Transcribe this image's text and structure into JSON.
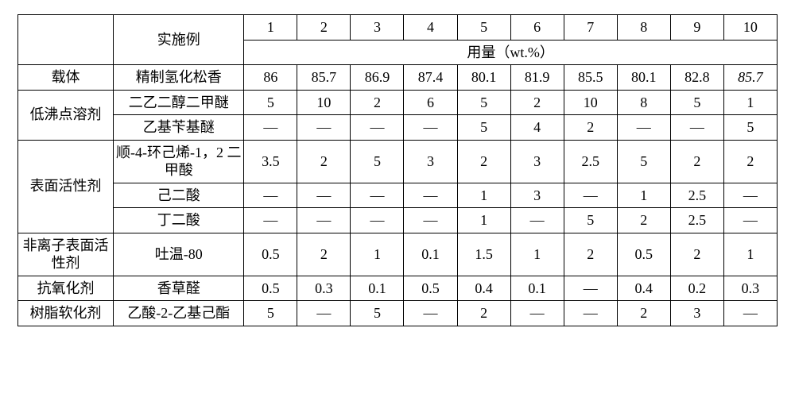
{
  "header": {
    "example_label": "实施例",
    "col_numbers": [
      "1",
      "2",
      "3",
      "4",
      "5",
      "6",
      "7",
      "8",
      "9",
      "10"
    ],
    "usage_label": "用量（wt.%）"
  },
  "dash": "—",
  "groups": [
    {
      "category": "载体",
      "rows": [
        {
          "item": "精制氢化松香",
          "values": [
            "86",
            "85.7",
            "86.9",
            "87.4",
            "80.1",
            "81.9",
            "85.5",
            "80.1",
            "82.8",
            "85.7"
          ],
          "italic_last": true
        }
      ]
    },
    {
      "category": "低沸点溶剂",
      "rows": [
        {
          "item": "二乙二醇二甲醚",
          "values": [
            "5",
            "10",
            "2",
            "6",
            "5",
            "2",
            "10",
            "8",
            "5",
            "1"
          ]
        },
        {
          "item": "乙基苄基醚",
          "values": [
            "—",
            "—",
            "—",
            "—",
            "5",
            "4",
            "2",
            "—",
            "—",
            "5"
          ]
        }
      ]
    },
    {
      "category": "表面活性剂",
      "rows": [
        {
          "item": "顺-4-环己烯-1，2 二甲酸",
          "values": [
            "3.5",
            "2",
            "5",
            "3",
            "2",
            "3",
            "2.5",
            "5",
            "2",
            "2"
          ]
        },
        {
          "item": "己二酸",
          "values": [
            "—",
            "—",
            "—",
            "—",
            "1",
            "3",
            "—",
            "1",
            "2.5",
            "—"
          ]
        },
        {
          "item": "丁二酸",
          "values": [
            "—",
            "—",
            "—",
            "—",
            "1",
            "—",
            "5",
            "2",
            "2.5",
            "—"
          ]
        }
      ]
    },
    {
      "category": "非离子表面活性剂",
      "rows": [
        {
          "item": "吐温-80",
          "values": [
            "0.5",
            "2",
            "1",
            "0.1",
            "1.5",
            "1",
            "2",
            "0.5",
            "2",
            "1"
          ]
        }
      ]
    },
    {
      "category": "抗氧化剂",
      "rows": [
        {
          "item": "香草醛",
          "values": [
            "0.5",
            "0.3",
            "0.1",
            "0.5",
            "0.4",
            "0.1",
            "—",
            "0.4",
            "0.2",
            "0.3"
          ]
        }
      ]
    },
    {
      "category": "树脂软化剂",
      "rows": [
        {
          "item": "乙酸-2-乙基己酯",
          "values": [
            "5",
            "—",
            "5",
            "—",
            "2",
            "—",
            "—",
            "2",
            "3",
            "—"
          ]
        }
      ]
    }
  ],
  "style": {
    "font_family": "SimSun",
    "font_size_pt": 14,
    "border_color": "#000000",
    "background_color": "#ffffff",
    "text_color": "#000000"
  }
}
